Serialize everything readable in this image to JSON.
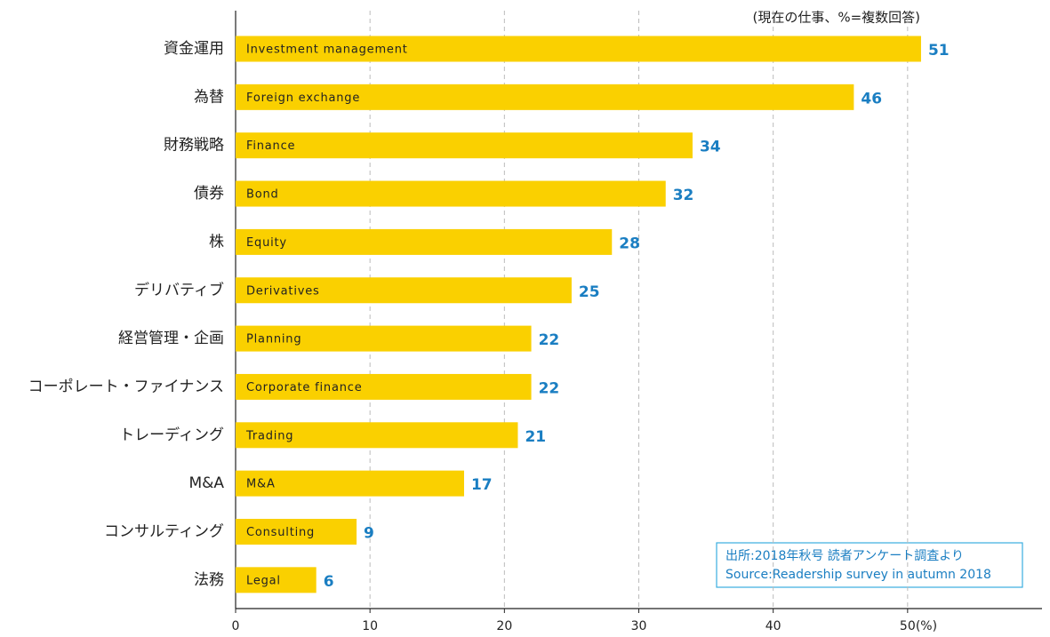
{
  "chart_data": {
    "type": "bar",
    "orientation": "horizontal",
    "note": "(現在の仕事、%=複数回答)",
    "categories": [
      "資金運用",
      "為替",
      "財務戦略",
      "債券",
      "株",
      "デリバティブ",
      "経営管理・企画",
      "コーポレート・ファイナンス",
      "トレーディング",
      "M&A",
      "コンサルティング",
      "法務"
    ],
    "english_labels": [
      "Investment management",
      "Foreign exchange",
      "Finance",
      "Bond",
      "Equity",
      "Derivatives",
      "Planning",
      "Corporate finance",
      "Trading",
      "M&A",
      "Consulting",
      "Legal"
    ],
    "values": [
      51,
      46,
      34,
      32,
      28,
      25,
      22,
      22,
      21,
      17,
      9,
      6
    ],
    "color": "#fad000",
    "value_label_color": "#1a7ec2",
    "xlim": [
      0,
      60
    ],
    "xticks": [
      0,
      10,
      20,
      30,
      40,
      50
    ],
    "x_unit": "(%)",
    "grid": true,
    "source": [
      "出所:2018年秋号 読者アンケート調査より",
      "Source:Readership survey in autumn 2018"
    ]
  }
}
